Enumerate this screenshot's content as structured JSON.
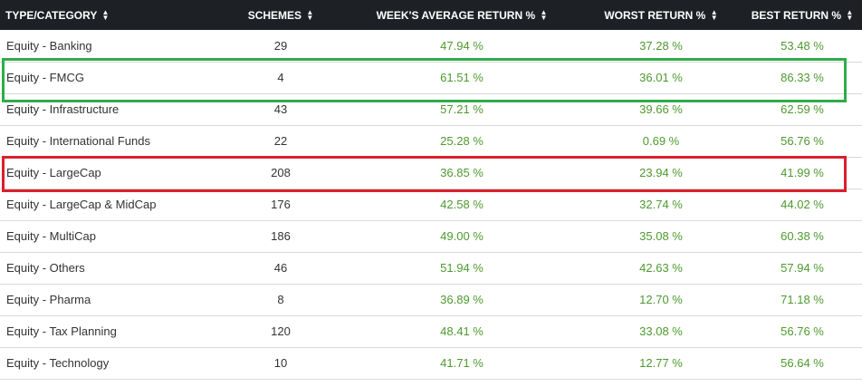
{
  "colors": {
    "header_bg": "#1d2126",
    "return_text": "#4d9a2e",
    "green_box": "#2fac4a",
    "red_box": "#dc1f2b"
  },
  "icons": {
    "sort": "sort-updown-icon"
  },
  "headers": {
    "type": "TYPE/CATEGORY",
    "schemes": "SCHEMES",
    "week_avg": "WEEK'S AVERAGE RETURN %",
    "worst": "WORST RETURN %",
    "best": "BEST RETURN %"
  },
  "rows": [
    {
      "type": "Equity - Banking",
      "schemes": "29",
      "week_avg": "47.94 %",
      "worst": "37.28 %",
      "best": "53.48 %"
    },
    {
      "type": "Equity - FMCG",
      "schemes": "4",
      "week_avg": "61.51 %",
      "worst": "36.01 %",
      "best": "86.33 %"
    },
    {
      "type": "Equity - Infrastructure",
      "schemes": "43",
      "week_avg": "57.21 %",
      "worst": "39.66 %",
      "best": "62.59 %"
    },
    {
      "type": "Equity - International Funds",
      "schemes": "22",
      "week_avg": "25.28 %",
      "worst": "0.69 %",
      "best": "56.76 %"
    },
    {
      "type": "Equity - LargeCap",
      "schemes": "208",
      "week_avg": "36.85 %",
      "worst": "23.94 %",
      "best": "41.99 %"
    },
    {
      "type": "Equity - LargeCap & MidCap",
      "schemes": "176",
      "week_avg": "42.58 %",
      "worst": "32.74 %",
      "best": "44.02 %"
    },
    {
      "type": "Equity - MultiCap",
      "schemes": "186",
      "week_avg": "49.00 %",
      "worst": "35.08 %",
      "best": "60.38 %"
    },
    {
      "type": "Equity - Others",
      "schemes": "46",
      "week_avg": "51.94 %",
      "worst": "42.63 %",
      "best": "57.94 %"
    },
    {
      "type": "Equity - Pharma",
      "schemes": "8",
      "week_avg": "36.89 %",
      "worst": "12.70 %",
      "best": "71.18 %"
    },
    {
      "type": "Equity - Tax Planning",
      "schemes": "120",
      "week_avg": "48.41 %",
      "worst": "33.08 %",
      "best": "56.76 %"
    },
    {
      "type": "Equity - Technology",
      "schemes": "10",
      "week_avg": "41.71 %",
      "worst": "12.77 %",
      "best": "56.64 %"
    }
  ]
}
